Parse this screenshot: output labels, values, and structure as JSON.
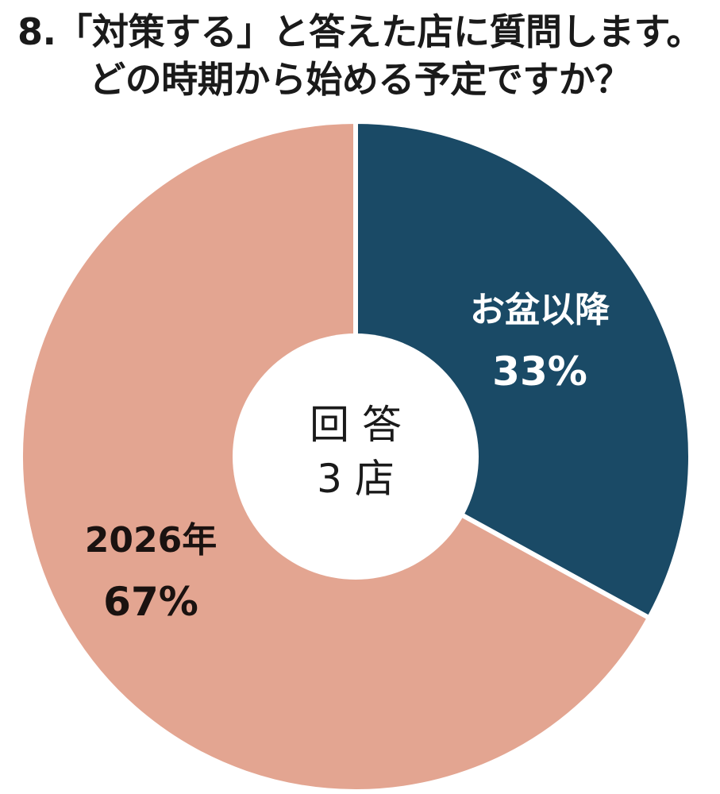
{
  "title_lines": [
    "8.「対策する」と答えた店に質問します。",
    "どの時期から始める予定ですか？"
  ],
  "center": {
    "line1": "回 答",
    "line2": "3 店"
  },
  "colors": {
    "slice_1": "#1a4a66",
    "slice_2": "#e3a591",
    "label_light": "#ffffff",
    "label_dark": "#1a1210",
    "center_text": "#1a1a1a"
  },
  "chart_data": {
    "type": "pie",
    "donut": true,
    "start_angle_deg": 0,
    "direction": "clockwise",
    "slices": [
      {
        "label": "お盆以降",
        "value": 33,
        "value_label": "33%"
      },
      {
        "label": "2026年",
        "value": 67,
        "value_label": "67%"
      }
    ]
  }
}
